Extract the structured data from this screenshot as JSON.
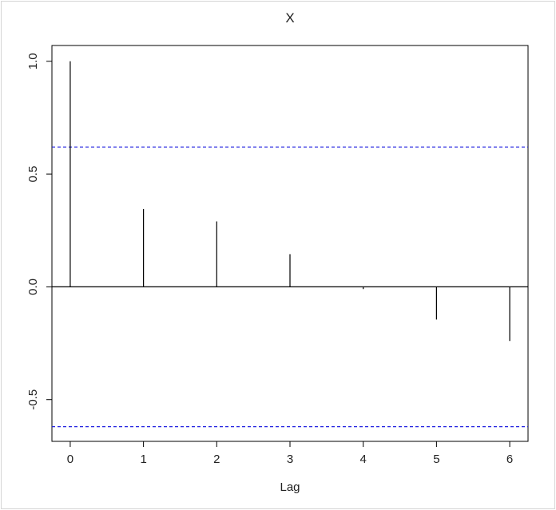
{
  "chart_data": {
    "type": "bar",
    "title": "X",
    "xlabel": "Lag",
    "ylabel": "",
    "x": [
      0,
      1,
      2,
      3,
      4,
      5,
      6
    ],
    "values": [
      1.0,
      0.345,
      0.29,
      0.145,
      -0.01,
      -0.145,
      -0.24
    ],
    "confidence_bounds": [
      0.62,
      -0.62
    ],
    "x_ticks": [
      0,
      1,
      2,
      3,
      4,
      5,
      6
    ],
    "y_ticks": [
      -0.5,
      0.0,
      0.5,
      1.0
    ],
    "x_tick_labels": [
      "0",
      "1",
      "2",
      "3",
      "4",
      "5",
      "6"
    ],
    "y_tick_labels": [
      "-0.5",
      "0.0",
      "0.5",
      "1.0"
    ],
    "xlim": [
      -0.25,
      6.25
    ],
    "ylim": [
      -0.685,
      1.07
    ],
    "colors": {
      "bars": "#000000",
      "zero_line": "#000000",
      "bounds": "#2020e0",
      "axes": "#000000"
    }
  }
}
